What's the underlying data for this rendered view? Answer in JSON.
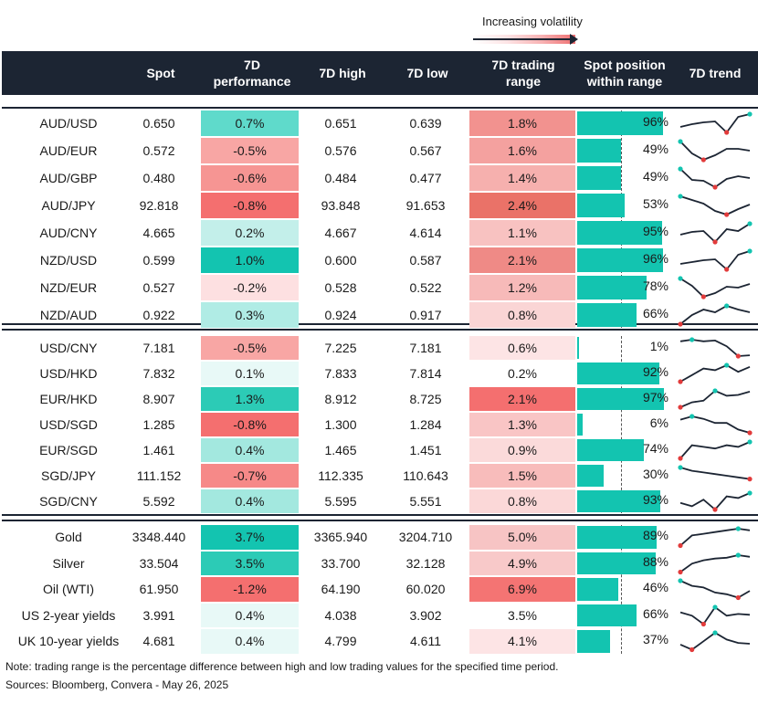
{
  "legend": {
    "label": "Increasing volatility"
  },
  "headers": {
    "spot": "Spot",
    "perf": "7D\nperformance",
    "high": "7D high",
    "low": "7D low",
    "range": "7D trading\nrange",
    "position": "Spot position\nwithin range",
    "trend": "7D trend"
  },
  "colors": {
    "header_bg": "#1c2533",
    "position_bar": "#13c4b0",
    "trend_line": "#1c2533",
    "trend_high": "#13c4b0",
    "trend_low": "#e23b3b"
  },
  "groups": [
    {
      "rows": [
        {
          "name": "AUD/USD",
          "spot": "0.650",
          "perf": "0.7%",
          "perf_color": "#5fdacb",
          "high": "0.651",
          "low": "0.639",
          "range": "1.8%",
          "range_color": "#f2928f",
          "position": "96%",
          "position_value": 0.96,
          "trend": [
            0.3,
            0.45,
            0.55,
            0.6,
            0.0,
            0.85,
            1.0
          ]
        },
        {
          "name": "AUD/EUR",
          "spot": "0.572",
          "perf": "-0.5%",
          "perf_color": "#f8a6a4",
          "high": "0.576",
          "low": "0.567",
          "range": "1.6%",
          "range_color": "#f4a19f",
          "position": "49%",
          "position_value": 0.49,
          "trend": [
            1.0,
            0.35,
            0.0,
            0.25,
            0.6,
            0.6,
            0.5
          ]
        },
        {
          "name": "AUD/GBP",
          "spot": "0.480",
          "perf": "-0.6%",
          "perf_color": "#f69593",
          "high": "0.484",
          "low": "0.477",
          "range": "1.4%",
          "range_color": "#f6b0ae",
          "position": "49%",
          "position_value": 0.49,
          "trend": [
            1.0,
            0.4,
            0.35,
            0.0,
            0.45,
            0.6,
            0.5
          ]
        },
        {
          "name": "AUD/JPY",
          "spot": "92.818",
          "perf": "-0.8%",
          "perf_color": "#f46f6f",
          "high": "93.848",
          "low": "91.653",
          "range": "2.4%",
          "range_color": "#ea7268",
          "position": "53%",
          "position_value": 0.53,
          "trend": [
            1.0,
            0.8,
            0.6,
            0.2,
            0.0,
            0.3,
            0.55
          ]
        },
        {
          "name": "AUD/CNY",
          "spot": "4.665",
          "perf": "0.2%",
          "perf_color": "#c3efea",
          "high": "4.667",
          "low": "4.614",
          "range": "1.1%",
          "range_color": "#f8c2c1",
          "position": "95%",
          "position_value": 0.95,
          "trend": [
            0.4,
            0.55,
            0.6,
            0.0,
            0.7,
            0.6,
            1.0
          ]
        },
        {
          "name": "NZD/USD",
          "spot": "0.599",
          "perf": "1.0%",
          "perf_color": "#13c4b0",
          "high": "0.600",
          "low": "0.587",
          "range": "2.1%",
          "range_color": "#ef8a86",
          "position": "96%",
          "position_value": 0.96,
          "trend": [
            0.3,
            0.4,
            0.5,
            0.55,
            0.0,
            0.8,
            1.0
          ]
        },
        {
          "name": "NZD/EUR",
          "spot": "0.527",
          "perf": "-0.2%",
          "perf_color": "#fde0e1",
          "high": "0.528",
          "low": "0.522",
          "range": "1.2%",
          "range_color": "#f7bab9",
          "position": "78%",
          "position_value": 0.78,
          "trend": [
            1.0,
            0.6,
            0.0,
            0.2,
            0.55,
            0.5,
            0.7
          ]
        },
        {
          "name": "NZD/AUD",
          "spot": "0.922",
          "perf": "0.3%",
          "perf_color": "#b0ece5",
          "high": "0.924",
          "low": "0.917",
          "range": "0.8%",
          "range_color": "#fad5d5",
          "position": "66%",
          "position_value": 0.66,
          "trend": [
            0.0,
            0.5,
            0.8,
            0.65,
            1.0,
            0.8,
            0.65
          ]
        }
      ]
    },
    {
      "rows": [
        {
          "name": "USD/CNY",
          "spot": "7.181",
          "perf": "-0.5%",
          "perf_color": "#f8a6a4",
          "high": "7.225",
          "low": "7.181",
          "range": "0.6%",
          "range_color": "#fde4e5",
          "position": "1%",
          "position_value": 0.01,
          "trend": [
            0.9,
            1.0,
            0.9,
            0.95,
            0.6,
            0.0,
            0.05
          ]
        },
        {
          "name": "USD/HKD",
          "spot": "7.832",
          "perf": "0.1%",
          "perf_color": "#e8f9f7",
          "high": "7.833",
          "low": "7.814",
          "range": "0.2%",
          "range_color": "#ffffff",
          "position": "92%",
          "position_value": 0.92,
          "trend": [
            0.0,
            0.4,
            0.8,
            0.7,
            1.0,
            0.6,
            0.9
          ]
        },
        {
          "name": "EUR/HKD",
          "spot": "8.907",
          "perf": "1.3%",
          "perf_color": "#2ccbb6",
          "high": "8.912",
          "low": "8.725",
          "range": "2.1%",
          "range_color": "#f46f6f",
          "position": "97%",
          "position_value": 0.97,
          "trend": [
            0.0,
            0.3,
            0.4,
            1.0,
            0.7,
            0.75,
            0.95
          ]
        },
        {
          "name": "USD/SGD",
          "spot": "1.285",
          "perf": "-0.8%",
          "perf_color": "#f46f6f",
          "high": "1.300",
          "low": "1.284",
          "range": "1.3%",
          "range_color": "#f9c5c5",
          "position": "6%",
          "position_value": 0.06,
          "trend": [
            0.8,
            1.0,
            0.85,
            0.6,
            0.6,
            0.2,
            0.0
          ]
        },
        {
          "name": "EUR/SGD",
          "spot": "1.461",
          "perf": "0.4%",
          "perf_color": "#a3e8df",
          "high": "1.465",
          "low": "1.451",
          "range": "0.9%",
          "range_color": "#fbdada",
          "position": "74%",
          "position_value": 0.74,
          "trend": [
            0.0,
            0.8,
            0.7,
            0.6,
            0.8,
            0.7,
            1.0
          ]
        },
        {
          "name": "SGD/JPY",
          "spot": "111.152",
          "perf": "-0.7%",
          "perf_color": "#f68988",
          "high": "112.335",
          "low": "110.643",
          "range": "1.5%",
          "range_color": "#f8bcbb",
          "position": "30%",
          "position_value": 0.3,
          "trend": [
            1.0,
            0.8,
            0.7,
            0.6,
            0.5,
            0.4,
            0.3
          ]
        },
        {
          "name": "SGD/CNY",
          "spot": "5.592",
          "perf": "0.4%",
          "perf_color": "#a3e8df",
          "high": "5.595",
          "low": "5.551",
          "range": "0.8%",
          "range_color": "#fbd8d8",
          "position": "93%",
          "position_value": 0.93,
          "trend": [
            0.4,
            0.2,
            0.6,
            0.0,
            0.8,
            0.7,
            1.0
          ]
        }
      ]
    },
    {
      "rows": [
        {
          "name": "Gold",
          "spot": "3348.440",
          "perf": "3.7%",
          "perf_color": "#13c4b0",
          "high": "3365.940",
          "low": "3204.710",
          "range": "5.0%",
          "range_color": "#f7c4c4",
          "position": "89%",
          "position_value": 0.89,
          "trend": [
            0.0,
            0.6,
            0.7,
            0.8,
            0.9,
            1.0,
            0.9
          ]
        },
        {
          "name": "Silver",
          "spot": "33.504",
          "perf": "3.5%",
          "perf_color": "#2ccbb6",
          "high": "33.700",
          "low": "32.128",
          "range": "4.9%",
          "range_color": "#f8c9c9",
          "position": "88%",
          "position_value": 0.88,
          "trend": [
            0.0,
            0.5,
            0.7,
            0.8,
            0.85,
            1.0,
            0.9
          ]
        },
        {
          "name": "Oil (WTI)",
          "spot": "61.950",
          "perf": "-1.2%",
          "perf_color": "#f46f6f",
          "high": "64.190",
          "low": "60.020",
          "range": "6.9%",
          "range_color": "#f47473",
          "position": "46%",
          "position_value": 0.46,
          "trend": [
            1.0,
            0.7,
            0.6,
            0.3,
            0.2,
            0.0,
            0.4
          ]
        },
        {
          "name": "US 2-year yields",
          "spot": "3.991",
          "perf": "0.4%",
          "perf_color": "#e8f9f7",
          "high": "4.038",
          "low": "3.902",
          "range": "3.5%",
          "range_color": "#ffffff",
          "position": "66%",
          "position_value": 0.66,
          "trend": [
            0.7,
            0.5,
            0.0,
            1.0,
            0.5,
            0.6,
            0.55
          ]
        },
        {
          "name": "UK 10-year yields",
          "spot": "4.681",
          "perf": "0.4%",
          "perf_color": "#e8f9f7",
          "high": "4.799",
          "low": "4.611",
          "range": "4.1%",
          "range_color": "#fde4e5",
          "position": "37%",
          "position_value": 0.37,
          "trend": [
            0.3,
            0.0,
            0.5,
            1.0,
            0.6,
            0.4,
            0.35
          ]
        }
      ]
    }
  ],
  "notes": {
    "note": "Note: trading range is the percentage difference between high and low trading values for the specified time period.",
    "sources": "Sources: Bloomberg, Convera - May 26, 2025"
  }
}
